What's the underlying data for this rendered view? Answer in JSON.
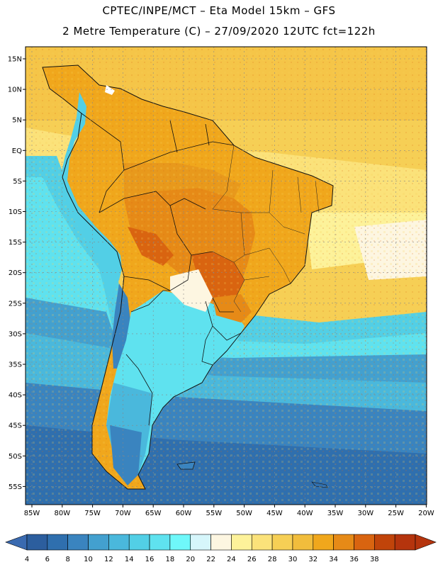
{
  "header": {
    "line1": "CPTEC/INPE/MCT –  Eta Model 15km – GFS",
    "line2": "2 Metre Temperature (C) – 27/09/2020 12UTC fct=122h"
  },
  "map": {
    "lat_labels": [
      "15N",
      "10N",
      "5N",
      "EQ",
      "5S",
      "10S",
      "15S",
      "20S",
      "25S",
      "30S",
      "35S",
      "40S",
      "45S",
      "50S",
      "55S"
    ],
    "lon_labels": [
      "85W",
      "80W",
      "75W",
      "70W",
      "65W",
      "60W",
      "55W",
      "50W",
      "45W",
      "40W",
      "35W",
      "30W",
      "25W",
      "20W"
    ]
  },
  "colorbar": {
    "ticks": [
      "4",
      "6",
      "8",
      "10",
      "12",
      "14",
      "16",
      "18",
      "20",
      "22",
      "24",
      "26",
      "28",
      "30",
      "32",
      "34",
      "36",
      "38"
    ],
    "colors": [
      "#2c5e9e",
      "#2f6fae",
      "#3a84bf",
      "#43a0cf",
      "#4ab8dc",
      "#52cfe6",
      "#5fe2ef",
      "#6ff8fa",
      "#d6f6fb",
      "#fdf6e1",
      "#fdf29a",
      "#fbe27a",
      "#f6cf55",
      "#f1bd3c",
      "#f0a71c",
      "#e68a17",
      "#d96410",
      "#c1440a",
      "#b5340d"
    ],
    "under_color": "#3a6ab0",
    "over_color": "#b5340d"
  }
}
